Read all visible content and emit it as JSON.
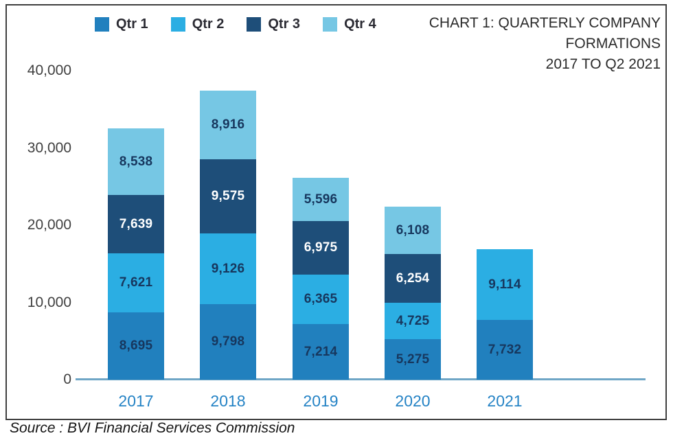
{
  "title_lines": [
    "CHART 1: QUARTERLY COMPANY",
    "FORMATIONS",
    "2017 TO Q2 2021"
  ],
  "source": "Source : BVI Financial Services Commission",
  "chart_data": {
    "type": "bar",
    "stacked": true,
    "title": "CHART 1: QUARTERLY COMPANY FORMATIONS 2017 TO Q2 2021",
    "xlabel": "",
    "ylabel": "",
    "categories": [
      "2017",
      "2018",
      "2019",
      "2020",
      "2021"
    ],
    "series": [
      {
        "name": "Qtr 1",
        "color": "#2180BE",
        "label_color": "#17375E",
        "values": [
          8695,
          9798,
          7214,
          5275,
          7732
        ]
      },
      {
        "name": "Qtr 2",
        "color": "#2BAEE3",
        "label_color": "#17375E",
        "values": [
          7621,
          9126,
          6365,
          4725,
          9114
        ]
      },
      {
        "name": "Qtr 3",
        "color": "#1E4E79",
        "label_color": "#FFFFFF",
        "values": [
          7639,
          9575,
          6975,
          6254,
          null
        ]
      },
      {
        "name": "Qtr 4",
        "color": "#76C7E4",
        "label_color": "#17375E",
        "values": [
          8538,
          8916,
          5596,
          6108,
          null
        ]
      }
    ],
    "totals": [
      32493,
      37415,
      26150,
      22362,
      16846
    ],
    "ylim": [
      0,
      40000
    ],
    "y_ticks": [
      0,
      10000,
      20000,
      30000,
      40000
    ],
    "y_tick_labels": [
      "0",
      "10,000",
      "20,000",
      "30,000",
      "40,000"
    ],
    "legend_position": "top",
    "legend_labels": [
      "Qtr 1",
      "Qtr 2",
      "Qtr 3",
      "Qtr 4"
    ],
    "grid": false,
    "axis_color": "#6FA6C6",
    "category_label_color": "#2583C5"
  }
}
